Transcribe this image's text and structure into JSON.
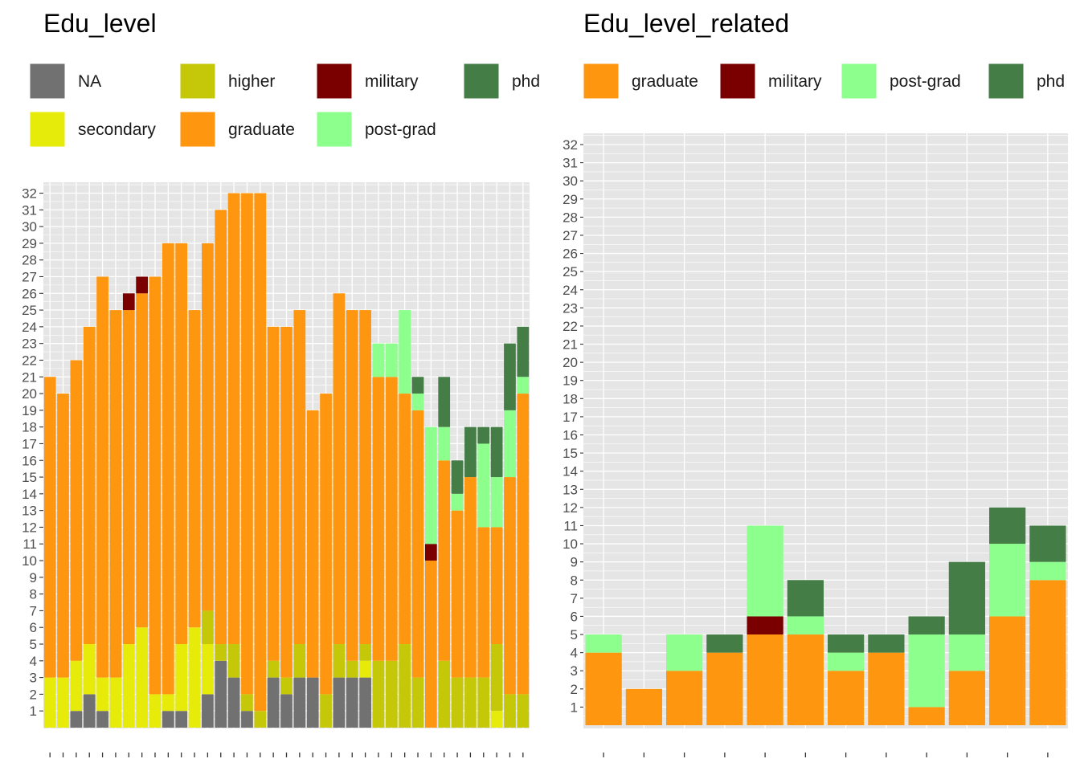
{
  "colors": {
    "NA": "#717171",
    "secondary": "#E6EB0A",
    "higher": "#C5C809",
    "graduate": "#FF960F",
    "military": "#7A0000",
    "post-grad": "#8CFF8C",
    "phd": "#457D46",
    "panel_bg": "#E5E5E5",
    "grid": "#FFFFFF"
  },
  "chart_data": [
    {
      "type": "bar",
      "stacked": true,
      "title": "Edu_level",
      "legend": [
        "NA",
        "higher",
        "military",
        "phd",
        "secondary",
        "graduate",
        "post-grad"
      ],
      "legend_position": "top",
      "ylim": [
        0,
        33
      ],
      "yticks": [
        1,
        2,
        3,
        4,
        5,
        6,
        7,
        8,
        9,
        10,
        11,
        12,
        13,
        14,
        15,
        16,
        17,
        18,
        19,
        20,
        21,
        22,
        23,
        24,
        25,
        26,
        27,
        28,
        29,
        30,
        31,
        32
      ],
      "x_tick_labels_shown": false,
      "stack_order": [
        "NA",
        "secondary",
        "higher",
        "graduate",
        "military",
        "post-grad",
        "phd"
      ],
      "bars": [
        {
          "secondary": 3,
          "graduate": 18
        },
        {
          "secondary": 3,
          "graduate": 17
        },
        {
          "NA": 1,
          "secondary": 3,
          "graduate": 18
        },
        {
          "NA": 2,
          "secondary": 3,
          "graduate": 19
        },
        {
          "NA": 1,
          "secondary": 2,
          "graduate": 24
        },
        {
          "secondary": 3,
          "graduate": 22
        },
        {
          "secondary": 5,
          "graduate": 20,
          "military": 1
        },
        {
          "secondary": 6,
          "graduate": 20,
          "military": 1
        },
        {
          "secondary": 2,
          "graduate": 25
        },
        {
          "NA": 1,
          "secondary": 1,
          "graduate": 27
        },
        {
          "NA": 1,
          "secondary": 4,
          "graduate": 24
        },
        {
          "secondary": 6,
          "graduate": 19
        },
        {
          "NA": 2,
          "secondary": 3,
          "higher": 2,
          "graduate": 22
        },
        {
          "NA": 4,
          "higher": 1,
          "graduate": 26
        },
        {
          "NA": 3,
          "higher": 2,
          "graduate": 27
        },
        {
          "NA": 1,
          "higher": 1,
          "graduate": 30
        },
        {
          "higher": 1,
          "graduate": 31
        },
        {
          "NA": 3,
          "higher": 1,
          "graduate": 20
        },
        {
          "NA": 2,
          "higher": 1,
          "graduate": 21
        },
        {
          "NA": 3,
          "higher": 2,
          "graduate": 20
        },
        {
          "NA": 3,
          "graduate": 16
        },
        {
          "higher": 2,
          "graduate": 18
        },
        {
          "NA": 3,
          "higher": 2,
          "graduate": 21
        },
        {
          "NA": 3,
          "higher": 1,
          "graduate": 21
        },
        {
          "NA": 3,
          "secondary": 1,
          "higher": 1,
          "graduate": 20
        },
        {
          "higher": 4,
          "graduate": 17,
          "post-grad": 2
        },
        {
          "higher": 4,
          "graduate": 17,
          "post-grad": 2
        },
        {
          "higher": 5,
          "graduate": 15,
          "post-grad": 5
        },
        {
          "higher": 3,
          "graduate": 16,
          "post-grad": 1,
          "phd": 1
        },
        {
          "graduate": 10,
          "military": 1,
          "post-grad": 7
        },
        {
          "higher": 4,
          "graduate": 12,
          "post-grad": 2,
          "phd": 3
        },
        {
          "higher": 3,
          "graduate": 10,
          "post-grad": 1,
          "phd": 2
        },
        {
          "higher": 3,
          "graduate": 12,
          "phd": 3
        },
        {
          "higher": 3,
          "graduate": 9,
          "post-grad": 5,
          "phd": 1
        },
        {
          "secondary": 1,
          "higher": 4,
          "graduate": 7,
          "post-grad": 3,
          "phd": 3
        },
        {
          "higher": 2,
          "graduate": 13,
          "post-grad": 4,
          "phd": 4
        },
        {
          "higher": 2,
          "graduate": 18,
          "post-grad": 1,
          "phd": 3
        }
      ]
    },
    {
      "type": "bar",
      "stacked": true,
      "title": "Edu_level_related",
      "legend": [
        "graduate",
        "military",
        "post-grad",
        "phd"
      ],
      "legend_position": "top",
      "ylim": [
        0,
        33
      ],
      "yticks": [
        1,
        2,
        3,
        4,
        5,
        6,
        7,
        8,
        9,
        10,
        11,
        12,
        13,
        14,
        15,
        16,
        17,
        18,
        19,
        20,
        21,
        22,
        23,
        24,
        25,
        26,
        27,
        28,
        29,
        30,
        31,
        32
      ],
      "x_tick_labels_shown": false,
      "stack_order": [
        "graduate",
        "military",
        "post-grad",
        "phd"
      ],
      "bars": [
        {
          "graduate": 4,
          "post-grad": 1
        },
        {
          "graduate": 2
        },
        {
          "graduate": 3,
          "post-grad": 2
        },
        {
          "graduate": 4,
          "phd": 1
        },
        {
          "graduate": 5,
          "military": 1,
          "post-grad": 5
        },
        {
          "graduate": 5,
          "post-grad": 1,
          "phd": 2
        },
        {
          "graduate": 3,
          "post-grad": 1,
          "phd": 1
        },
        {
          "graduate": 4,
          "phd": 1
        },
        {
          "graduate": 1,
          "post-grad": 4,
          "phd": 1
        },
        {
          "graduate": 3,
          "post-grad": 2,
          "phd": 4
        },
        {
          "graduate": 6,
          "post-grad": 4,
          "phd": 2
        },
        {
          "graduate": 8,
          "post-grad": 1,
          "phd": 2
        }
      ]
    }
  ]
}
